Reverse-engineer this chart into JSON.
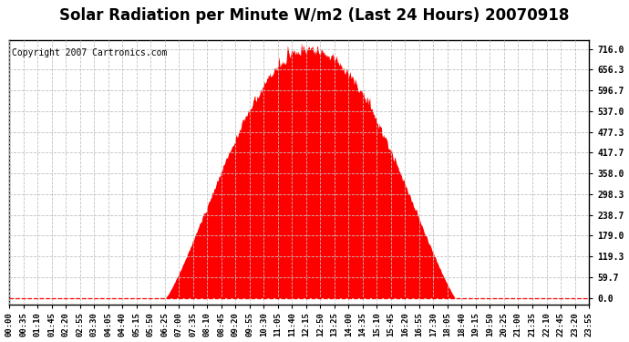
{
  "title": "Solar Radiation per Minute W/m2 (Last 24 Hours) 20070918",
  "copyright_text": "Copyright 2007 Cartronics.com",
  "background_color": "#ffffff",
  "fill_color": "#ff0000",
  "grid_color": "#c0c0c0",
  "zero_line_color": "#ff0000",
  "ytick_labels": [
    "0.0",
    "59.7",
    "119.3",
    "179.0",
    "238.7",
    "298.3",
    "358.0",
    "417.7",
    "477.3",
    "537.0",
    "596.7",
    "656.3",
    "716.0"
  ],
  "ytick_values": [
    0.0,
    59.7,
    119.3,
    179.0,
    238.7,
    298.3,
    358.0,
    417.7,
    477.3,
    537.0,
    596.7,
    656.3,
    716.0
  ],
  "ymax": 716.0,
  "ymin": 0.0,
  "num_minutes": 1440,
  "sunrise_minute": 388,
  "sunset_minute": 1108,
  "peak_minute": 748,
  "peak_value": 716.0,
  "xtick_labels": [
    "00:00",
    "00:35",
    "01:10",
    "01:45",
    "02:20",
    "02:55",
    "03:30",
    "04:05",
    "04:40",
    "05:15",
    "05:50",
    "06:25",
    "07:00",
    "07:35",
    "08:10",
    "08:45",
    "09:20",
    "09:55",
    "10:30",
    "11:05",
    "11:40",
    "12:15",
    "12:50",
    "13:25",
    "14:00",
    "14:35",
    "15:10",
    "15:45",
    "16:20",
    "16:55",
    "17:30",
    "18:05",
    "18:40",
    "19:15",
    "19:50",
    "20:25",
    "21:00",
    "21:35",
    "22:10",
    "22:45",
    "23:20",
    "23:55"
  ],
  "title_fontsize": 12,
  "tick_fontsize": 7,
  "copyright_fontsize": 7
}
